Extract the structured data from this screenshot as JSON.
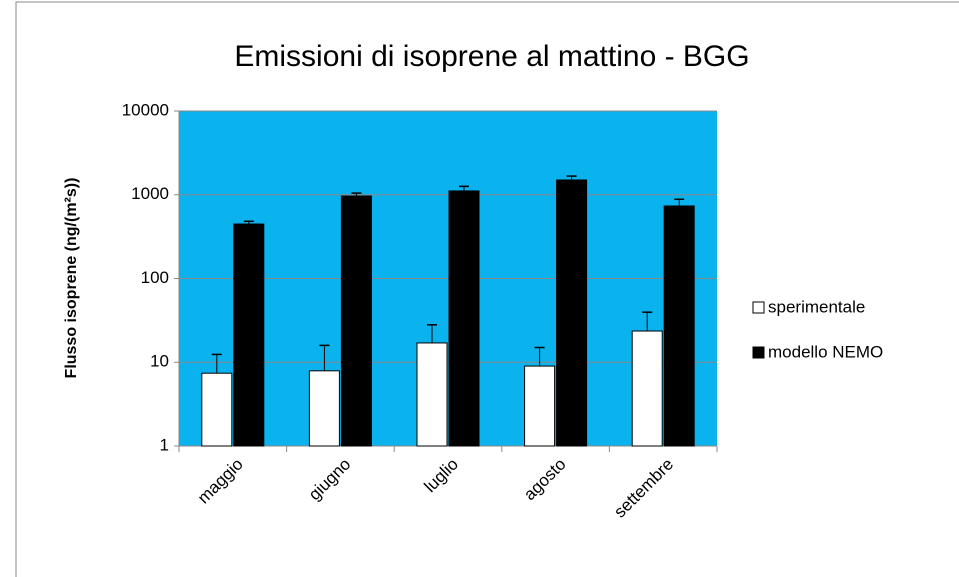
{
  "chart_data": {
    "type": "bar",
    "title": "Emissioni di isoprene al mattino - BGG",
    "y_label": "Flusso isoprene (ng/(m²s))",
    "categories": [
      "maggio",
      "giugno",
      "luglio",
      "agosto",
      "settembre"
    ],
    "series": [
      {
        "name": "sperimentale",
        "color": "#ffffff",
        "values": [
          7.4,
          7.9,
          17,
          9.0,
          23.6
        ],
        "errors": [
          5,
          8,
          11,
          6,
          16
        ]
      },
      {
        "name": "modello NEMO",
        "color": "#000000",
        "values": [
          447,
          966,
          1110,
          1500,
          734
        ],
        "errors": [
          35,
          80,
          150,
          170,
          150
        ]
      }
    ],
    "log_y": true,
    "ylim": [
      1,
      10000
    ],
    "yticks": [
      1,
      10,
      100,
      1000,
      10000
    ],
    "grid": true,
    "legend": "right",
    "plot_background": "#0ab2ee"
  }
}
